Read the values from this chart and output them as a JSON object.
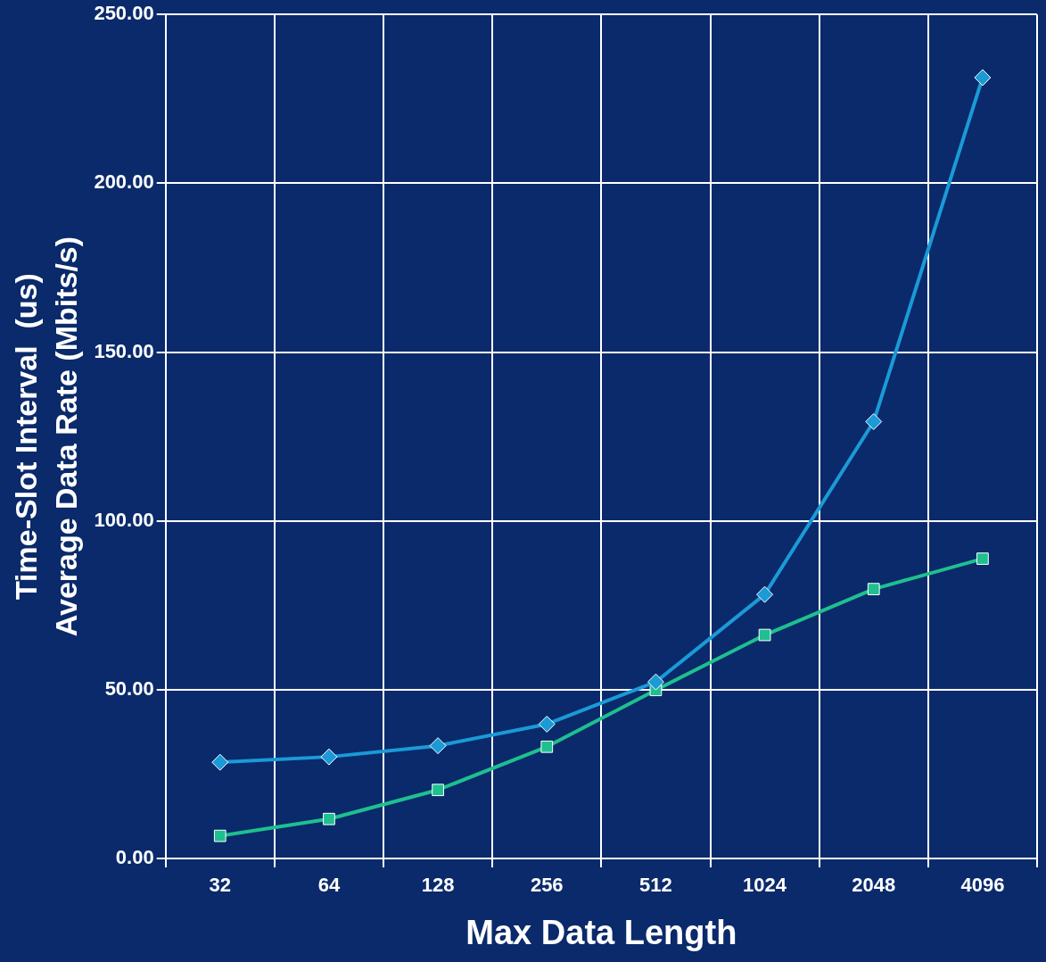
{
  "chart_data": {
    "type": "line",
    "xlabel": "Max Data Length",
    "ylabel": "Time-Slot Interval  (us)\nAverage Data Rate (Mbits/s)",
    "categories": [
      "32",
      "64",
      "128",
      "256",
      "512",
      "1024",
      "2048",
      "4096"
    ],
    "series": [
      {
        "color": "#1b9ad6",
        "marker": "diamond",
        "values": [
          28.5,
          30.1,
          33.4,
          39.8,
          52.3,
          78.2,
          129.4,
          231.3
        ]
      },
      {
        "color": "#1fbf8f",
        "marker": "square",
        "values": [
          6.7,
          11.7,
          20.3,
          33.1,
          49.9,
          66.2,
          79.8,
          88.8
        ]
      }
    ],
    "ylim": [
      0,
      250
    ],
    "yticks": [
      {
        "value": 0,
        "label": "0.00"
      },
      {
        "value": 50,
        "label": "50.00"
      },
      {
        "value": 100,
        "label": "100.00"
      },
      {
        "value": 150,
        "label": "150.00"
      },
      {
        "value": 200,
        "label": "200.00"
      },
      {
        "value": 250,
        "label": "250.00"
      }
    ],
    "grid": true,
    "legend": false
  }
}
